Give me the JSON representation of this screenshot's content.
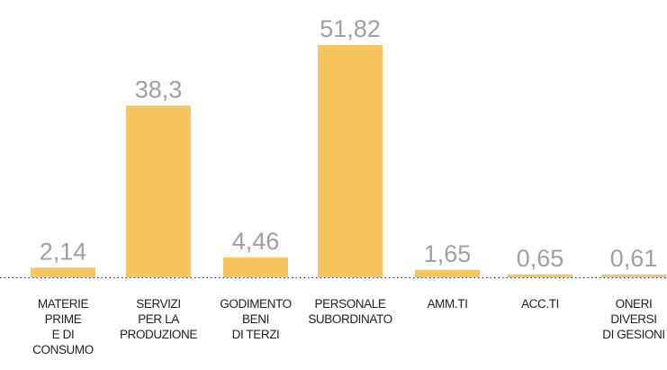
{
  "chart_data": {
    "type": "bar",
    "categories": [
      "MATERIE\nPRIME\nE DI\nCONSUMO",
      "SERVIZI\nPER LA\nPRODUZIONE",
      "GODIMENTO\nBENI\nDI TERZI",
      "PERSONALE\nSUBORDINATO",
      "AMM.TI",
      "ACC.TI",
      "ONERI\nDIVERSI\nDI GESIONI"
    ],
    "values": [
      2.14,
      38.3,
      4.46,
      51.82,
      1.65,
      0.65,
      0.61
    ],
    "value_labels": [
      "2,14",
      "38,3",
      "4,46",
      "51,82",
      "1,65",
      "0,65",
      "0,61"
    ],
    "color": "#f7c45e"
  }
}
